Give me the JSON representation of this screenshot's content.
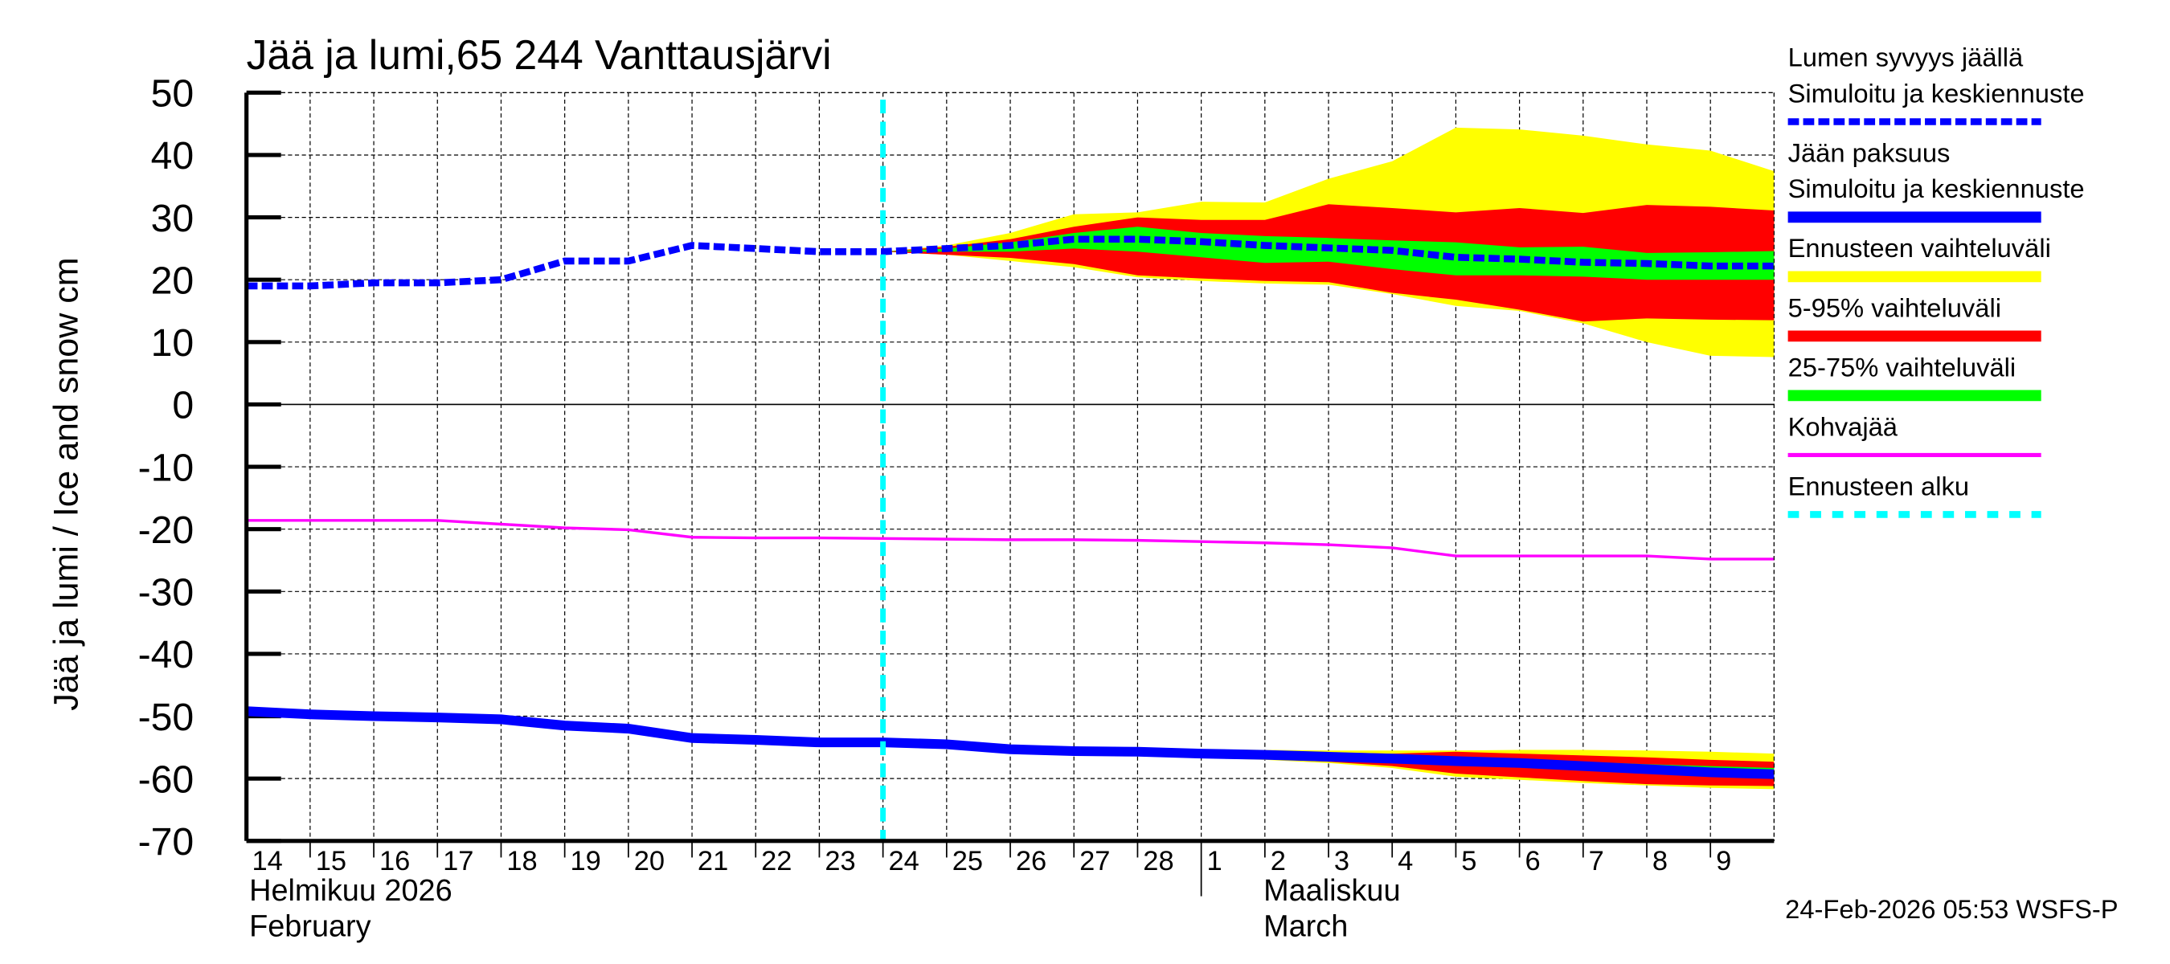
{
  "chart_data": {
    "type": "area",
    "title": "Jää ja lumi,65 244 Vanttausjärvi",
    "ylabel": "Jää ja lumi / Ice and snow    cm",
    "ylim": [
      -70,
      50
    ],
    "yticks": [
      50,
      40,
      30,
      20,
      10,
      0,
      -10,
      -20,
      -30,
      -40,
      -50,
      -60,
      -70
    ],
    "grid": true,
    "legend_placement": "right",
    "x_dates": [
      "2026-02-14",
      "2026-02-15",
      "2026-02-16",
      "2026-02-17",
      "2026-02-18",
      "2026-02-19",
      "2026-02-20",
      "2026-02-21",
      "2026-02-22",
      "2026-02-23",
      "2026-02-24",
      "2026-02-25",
      "2026-02-26",
      "2026-02-27",
      "2026-02-28",
      "2026-03-01",
      "2026-03-02",
      "2026-03-03",
      "2026-03-04",
      "2026-03-05",
      "2026-03-06",
      "2026-03-07",
      "2026-03-08",
      "2026-03-09",
      "2026-03-10"
    ],
    "xtick_labels": [
      "14",
      "15",
      "16",
      "17",
      "18",
      "19",
      "20",
      "21",
      "22",
      "23",
      "24",
      "25",
      "26",
      "27",
      "28",
      "1",
      "2",
      "3",
      "4",
      "5",
      "6",
      "7",
      "8",
      "9"
    ],
    "month_labels": [
      {
        "fi": "Helmikuu  2026",
        "en": "February"
      },
      {
        "fi": "Maaliskuu",
        "en": "March"
      }
    ],
    "forecast_start": "2026-02-24",
    "snow_depth": [
      19,
      19,
      19.5,
      19.5,
      20,
      23,
      23,
      25.5,
      25,
      24.5,
      24.5,
      25,
      25.5,
      26.5,
      26.5,
      26.1,
      25.5,
      25.1,
      24.7,
      23.6,
      23.3,
      22.8,
      22.6,
      22.2,
      22.2
    ],
    "snow_bands": {
      "start_index": 10,
      "min": [
        24.5,
        24,
        23,
        22,
        20.4,
        19.8,
        19.4,
        19.2,
        17.7,
        15.8,
        15,
        13,
        10,
        7.8,
        7.6
      ],
      "p5": [
        24.5,
        24,
        23.5,
        22.5,
        20.7,
        20.2,
        19.8,
        19.6,
        17.9,
        16.8,
        15.2,
        13.3,
        13.8,
        13.6,
        13.5
      ],
      "p25": [
        24.5,
        24.5,
        24.5,
        25,
        24.5,
        23.6,
        22.7,
        22.9,
        21.7,
        20.7,
        20.7,
        20.5,
        20,
        20,
        20
      ],
      "p75": [
        24.5,
        25,
        26,
        27.5,
        28.5,
        27.5,
        27,
        26.7,
        26.3,
        26,
        25.2,
        25.3,
        24.3,
        24.4,
        24.6
      ],
      "p95": [
        24.5,
        25.3,
        26.5,
        28.5,
        30,
        29.6,
        29.6,
        32.1,
        31.5,
        30.8,
        31.5,
        30.7,
        32,
        31.7,
        31.1
      ],
      "max": [
        24.5,
        25.5,
        27.5,
        30.5,
        30.8,
        32.5,
        32.4,
        36.2,
        39,
        44.4,
        44.1,
        43.1,
        41.7,
        40.7,
        37.4
      ]
    },
    "slush_ice": [
      -18.6,
      -18.6,
      -18.6,
      -18.6,
      -19.2,
      -19.8,
      -20.1,
      -21.3,
      -21.4,
      -21.4,
      -21.5,
      -21.6,
      -21.7,
      -21.7,
      -21.8,
      -22,
      -22.2,
      -22.5,
      -23,
      -24.3,
      -24.3,
      -24.3,
      -24.3,
      -24.8,
      -24.8
    ],
    "ice_thickness": [
      -49.2,
      -49.7,
      -50,
      -50.2,
      -50.5,
      -51.5,
      -52,
      -53.5,
      -53.8,
      -54.2,
      -54.2,
      -54.5,
      -55.3,
      -55.6,
      -55.7,
      -56,
      -56.2,
      -56.5,
      -56.8,
      -57.2,
      -57.5,
      -58,
      -58.5,
      -59,
      -59.3
    ],
    "ice_bands": {
      "start_index": 10,
      "min": [
        -54.2,
        -54.8,
        -55.8,
        -56.2,
        -56.4,
        -56.7,
        -57,
        -57.5,
        -58.3,
        -59.7,
        -60.2,
        -60.7,
        -61.1,
        -61.5,
        -61.7
      ],
      "p5": [
        -54.2,
        -54.7,
        -55.6,
        -56,
        -56.3,
        -56.6,
        -56.9,
        -57.3,
        -58,
        -59.2,
        -59.8,
        -60.4,
        -60.9,
        -61.1,
        -61.2
      ],
      "p25": [
        -54.2,
        -54.6,
        -55.5,
        -55.8,
        -56,
        -56.3,
        -56.6,
        -56.9,
        -57.3,
        -57.8,
        -58.2,
        -58.7,
        -59.2,
        -59.7,
        -60
      ],
      "p75": [
        -54.2,
        -54.4,
        -55.1,
        -55.4,
        -55.5,
        -55.8,
        -56,
        -56.3,
        -56.5,
        -56.8,
        -57,
        -57.3,
        -57.7,
        -58,
        -58.3
      ],
      "p95": [
        -54.2,
        -54.3,
        -55,
        -55.2,
        -55.3,
        -55.5,
        -55.6,
        -55.8,
        -56,
        -55.7,
        -56,
        -56.3,
        -56.6,
        -57,
        -57.3
      ],
      "max": [
        -54.2,
        -54.2,
        -54.9,
        -55.1,
        -55.2,
        -55.3,
        -55.4,
        -55.5,
        -55.5,
        -55.5,
        -55.4,
        -55.4,
        -55.5,
        -55.7,
        -56
      ]
    },
    "legend": [
      {
        "label": "Lumen syvyys jäällä",
        "label2": "Simuloitu ja keskiennuste",
        "color": "#0000ff",
        "style": "dashed"
      },
      {
        "label": "Jään paksuus",
        "label2": "Simuloitu ja keskiennuste",
        "color": "#0000ff",
        "style": "solid"
      },
      {
        "label": "Ennusteen vaihteluväli",
        "color": "#ffff00",
        "style": "solid"
      },
      {
        "label": "5-95% vaihteluväli",
        "color": "#ff0000",
        "style": "solid"
      },
      {
        "label": "25-75% vaihteluväli",
        "color": "#00ff00",
        "style": "solid"
      },
      {
        "label": "Kohvajää",
        "color": "#ff00ff",
        "style": "thin"
      },
      {
        "label": "Ennusteen alku",
        "color": "#00ffff",
        "style": "dotted"
      }
    ],
    "colors": {
      "snow": "#0000ff",
      "ice": "#0000ff",
      "range": "#ffff00",
      "p5_95": "#ff0000",
      "p25_75": "#00ff00",
      "slush": "#ff00ff",
      "forecast_start": "#00ffff"
    }
  },
  "footer": "24-Feb-2026 05:53 WSFS-P"
}
